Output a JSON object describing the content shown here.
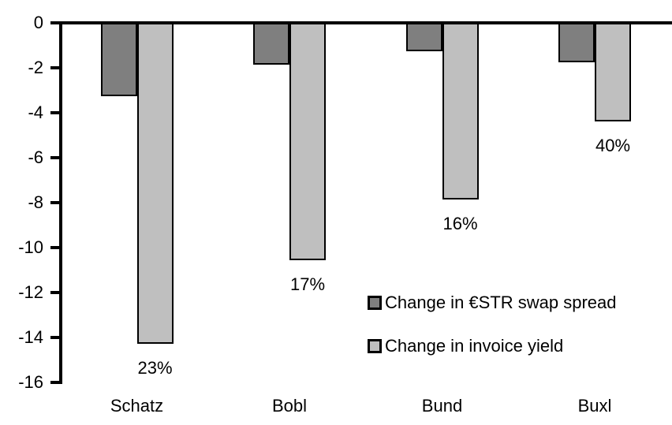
{
  "colors": {
    "background": "#ffffff",
    "axis": "#000000",
    "text": "#000000",
    "swap_spread_fill": "#7f7f7f",
    "invoice_yield_fill": "#bfbfbf",
    "bar_outline": "#000000"
  },
  "chart_data": {
    "type": "bar",
    "orientation": "vertical",
    "title": "",
    "xlabel": "",
    "ylabel": "",
    "categories": [
      "Schatz",
      "Bobl",
      "Bund",
      "Buxl"
    ],
    "series": [
      {
        "name": "Change in €STR swap spread",
        "color": "#7f7f7f",
        "values": [
          -3.2,
          -1.8,
          -1.2,
          -1.7
        ]
      },
      {
        "name": "Change in invoice yield",
        "color": "#bfbfbf",
        "values": [
          -14.2,
          -10.5,
          -7.8,
          -4.3
        ],
        "data_labels": [
          "23%",
          "17%",
          "16%",
          "40%"
        ]
      }
    ],
    "ylim": [
      -16,
      0
    ],
    "yticks": [
      0,
      -2,
      -4,
      -6,
      -8,
      -10,
      -12,
      -14,
      -16
    ],
    "grid": false,
    "legend_position": "inside-center-right"
  }
}
